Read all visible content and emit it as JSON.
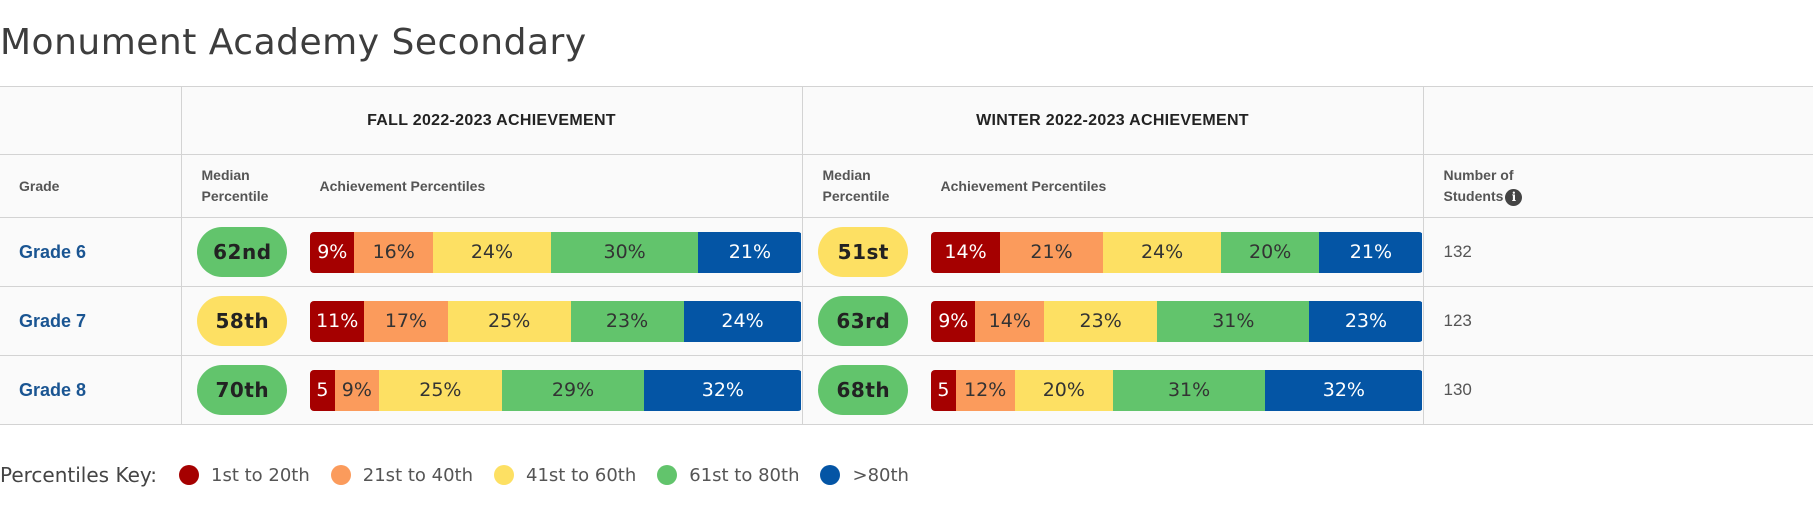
{
  "school_name": "Monument Academy Secondary",
  "headers": {
    "fall": "FALL 2022-2023 ACHIEVEMENT",
    "winter": "WINTER 2022-2023 ACHIEVEMENT",
    "grade": "Grade",
    "median_line1": "Median",
    "median_line2": "Percentile",
    "achievement": "Achievement Percentiles",
    "students_line1": "Number of",
    "students_line2": "Students",
    "info_glyph": "i"
  },
  "colors": {
    "p1": "#a50000",
    "p2": "#fb9b5c",
    "p3": "#fde063",
    "p4": "#62c46c",
    "p5": "#0455a5"
  },
  "rows": [
    {
      "grade": "Grade 6",
      "fall": {
        "median": "62nd",
        "median_band": "p4",
        "segments": [
          {
            "label": "9%",
            "value": 9,
            "band": "p1"
          },
          {
            "label": "16%",
            "value": 16,
            "band": "p2"
          },
          {
            "label": "24%",
            "value": 24,
            "band": "p3"
          },
          {
            "label": "30%",
            "value": 30,
            "band": "p4"
          },
          {
            "label": "21%",
            "value": 21,
            "band": "p5"
          }
        ]
      },
      "winter": {
        "median": "51st",
        "median_band": "p3",
        "segments": [
          {
            "label": "14%",
            "value": 14,
            "band": "p1"
          },
          {
            "label": "21%",
            "value": 21,
            "band": "p2"
          },
          {
            "label": "24%",
            "value": 24,
            "band": "p3"
          },
          {
            "label": "20%",
            "value": 20,
            "band": "p4"
          },
          {
            "label": "21%",
            "value": 21,
            "band": "p5"
          }
        ]
      },
      "students": "132"
    },
    {
      "grade": "Grade 7",
      "fall": {
        "median": "58th",
        "median_band": "p3",
        "segments": [
          {
            "label": "11%",
            "value": 11,
            "band": "p1"
          },
          {
            "label": "17%",
            "value": 17,
            "band": "p2"
          },
          {
            "label": "25%",
            "value": 25,
            "band": "p3"
          },
          {
            "label": "23%",
            "value": 23,
            "band": "p4"
          },
          {
            "label": "24%",
            "value": 24,
            "band": "p5"
          }
        ]
      },
      "winter": {
        "median": "63rd",
        "median_band": "p4",
        "segments": [
          {
            "label": "9%",
            "value": 9,
            "band": "p1"
          },
          {
            "label": "14%",
            "value": 14,
            "band": "p2"
          },
          {
            "label": "23%",
            "value": 23,
            "band": "p3"
          },
          {
            "label": "31%",
            "value": 31,
            "band": "p4"
          },
          {
            "label": "23%",
            "value": 23,
            "band": "p5"
          }
        ]
      },
      "students": "123"
    },
    {
      "grade": "Grade 8",
      "fall": {
        "median": "70th",
        "median_band": "p4",
        "segments": [
          {
            "label": "5",
            "value": 5,
            "band": "p1"
          },
          {
            "label": "9%",
            "value": 9,
            "band": "p2"
          },
          {
            "label": "25%",
            "value": 25,
            "band": "p3"
          },
          {
            "label": "29%",
            "value": 29,
            "band": "p4"
          },
          {
            "label": "32%",
            "value": 32,
            "band": "p5"
          }
        ]
      },
      "winter": {
        "median": "68th",
        "median_band": "p4",
        "segments": [
          {
            "label": "5",
            "value": 5,
            "band": "p1"
          },
          {
            "label": "12%",
            "value": 12,
            "band": "p2"
          },
          {
            "label": "20%",
            "value": 20,
            "band": "p3"
          },
          {
            "label": "31%",
            "value": 31,
            "band": "p4"
          },
          {
            "label": "32%",
            "value": 32,
            "band": "p5"
          }
        ]
      },
      "students": "130"
    }
  ],
  "key": {
    "title": "Percentiles Key:",
    "items": [
      {
        "label": "1st to 20th",
        "band": "p1"
      },
      {
        "label": "21st to 40th",
        "band": "p2"
      },
      {
        "label": "41st to 60th",
        "band": "p3"
      },
      {
        "label": "61st to 80th",
        "band": "p4"
      },
      {
        "label": ">80th",
        "band": "p5"
      }
    ]
  }
}
